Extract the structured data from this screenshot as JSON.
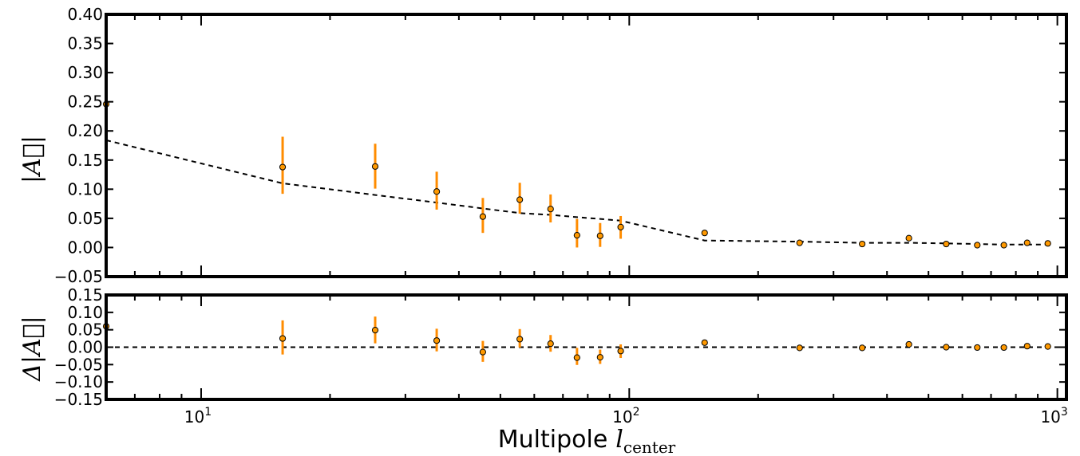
{
  "chart_data": [
    {
      "type": "scatter",
      "panel": "top",
      "ylabel": "|A⃗|",
      "xscale": "log",
      "xlim": [
        6,
        1050
      ],
      "ylim": [
        -0.05,
        0.4
      ],
      "yticks": [
        "0.40",
        "0.35",
        "0.30",
        "0.25",
        "0.20",
        "0.15",
        "0.10",
        "0.05",
        "0.00",
        "−0.05"
      ],
      "ytick_values": [
        0.4,
        0.35,
        0.3,
        0.25,
        0.2,
        0.15,
        0.1,
        0.05,
        0.0,
        -0.05
      ],
      "grid": false,
      "marker_color": "#ff9900",
      "errorbar_color": "#ff8c00",
      "series": [
        {
          "kind": "points_with_errorbars",
          "x": [
            6,
            15.5,
            25.5,
            35.5,
            45.5,
            55.5,
            65.5,
            75.5,
            85.5,
            95.5,
            150,
            250,
            350,
            450,
            550,
            650,
            750,
            850,
            950
          ],
          "y": [
            0.246,
            0.138,
            0.139,
            0.096,
            0.053,
            0.082,
            0.066,
            0.021,
            0.02,
            0.035,
            0.025,
            0.008,
            0.006,
            0.016,
            0.006,
            0.004,
            0.004,
            0.008,
            0.007
          ],
          "ylow": [
            0.17,
            0.092,
            0.101,
            0.065,
            0.025,
            0.058,
            0.043,
            0.0,
            0.001,
            0.015,
            0.025,
            0.008,
            0.006,
            0.016,
            0.006,
            0.004,
            0.004,
            0.008,
            0.007
          ],
          "yhigh": [
            0.34,
            0.19,
            0.178,
            0.13,
            0.085,
            0.111,
            0.091,
            0.049,
            0.042,
            0.054,
            0.025,
            0.008,
            0.006,
            0.016,
            0.006,
            0.004,
            0.004,
            0.008,
            0.007
          ]
        },
        {
          "kind": "dashed_line",
          "color": "#000000",
          "x": [
            6,
            15.5,
            25.5,
            35.5,
            45.5,
            55.5,
            65.5,
            75.5,
            85.5,
            95.5,
            150,
            250,
            350,
            450,
            550,
            650,
            750,
            850,
            950
          ],
          "y": [
            0.184,
            0.11,
            0.09,
            0.077,
            0.067,
            0.059,
            0.056,
            0.052,
            0.049,
            0.046,
            0.012,
            0.01,
            0.008,
            0.008,
            0.007,
            0.006,
            0.005,
            0.005,
            0.005
          ]
        }
      ]
    },
    {
      "type": "scatter",
      "panel": "bottom",
      "ylabel": "Δ|A⃗|",
      "xlabel": "Multipole",
      "xlabel_math": "l",
      "xlabel_sub": "center",
      "xscale": "log",
      "xlim": [
        6,
        1050
      ],
      "ylim": [
        -0.15,
        0.15
      ],
      "yticks": [
        "0.15",
        "0.10",
        "0.05",
        "0.00",
        "−0.05",
        "−0.10",
        "−0.15"
      ],
      "ytick_values": [
        0.15,
        0.1,
        0.05,
        0.0,
        -0.05,
        -0.1,
        -0.15
      ],
      "xticks": [
        {
          "value": 10,
          "base": "10",
          "exp": "1"
        },
        {
          "value": 100,
          "base": "10",
          "exp": "2"
        },
        {
          "value": 1000,
          "base": "10",
          "exp": "3"
        }
      ],
      "grid": false,
      "reference_line": 0.0,
      "series": [
        {
          "kind": "points_with_errorbars",
          "x": [
            6,
            15.5,
            25.5,
            35.5,
            45.5,
            55.5,
            65.5,
            75.5,
            85.5,
            95.5,
            150,
            250,
            350,
            450,
            550,
            650,
            750,
            850,
            950
          ],
          "y": [
            0.06,
            0.025,
            0.049,
            0.019,
            -0.014,
            0.023,
            0.01,
            -0.03,
            -0.029,
            -0.011,
            0.013,
            -0.002,
            -0.002,
            0.008,
            0.0,
            -0.001,
            -0.001,
            0.003,
            0.002
          ],
          "ylow": [
            -0.016,
            -0.021,
            0.011,
            -0.012,
            -0.042,
            -0.001,
            -0.013,
            -0.051,
            -0.048,
            -0.031,
            0.013,
            -0.002,
            -0.002,
            0.008,
            0.0,
            -0.001,
            -0.001,
            0.003,
            0.002
          ],
          "yhigh": [
            0.152,
            0.077,
            0.088,
            0.053,
            0.018,
            0.052,
            0.035,
            -0.002,
            -0.007,
            0.008,
            0.013,
            -0.002,
            -0.002,
            0.008,
            0.0,
            -0.001,
            -0.001,
            0.003,
            0.002
          ]
        }
      ]
    }
  ]
}
